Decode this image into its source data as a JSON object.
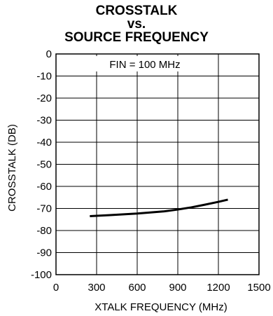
{
  "chart_data": {
    "type": "line",
    "title_lines": [
      "CROSSTALK",
      "vs.",
      "SOURCE FREQUENCY"
    ],
    "xlabel": "XTALK  FREQUENCY (MHz)",
    "ylabel": "CROSSTALK (DB)",
    "annotation": "FIN = 100 MHz",
    "xlim": [
      0,
      1500
    ],
    "ylim": [
      -100,
      0
    ],
    "x_ticks": [
      "0",
      "300",
      "600",
      "900",
      "1200",
      "1500"
    ],
    "y_ticks": [
      "0",
      "-10",
      "-20",
      "-30",
      "-40",
      "-50",
      "-60",
      "-70",
      "-80",
      "-90",
      "-100"
    ],
    "grid": true,
    "series": [
      {
        "x": [
          250,
          400,
          600,
          800,
          900,
          1000,
          1100,
          1200,
          1270
        ],
        "y": [
          -73.5,
          -73.0,
          -72.3,
          -71.3,
          -70.5,
          -69.5,
          -68.3,
          -67.0,
          -66.0
        ],
        "color": "#000000"
      }
    ]
  }
}
